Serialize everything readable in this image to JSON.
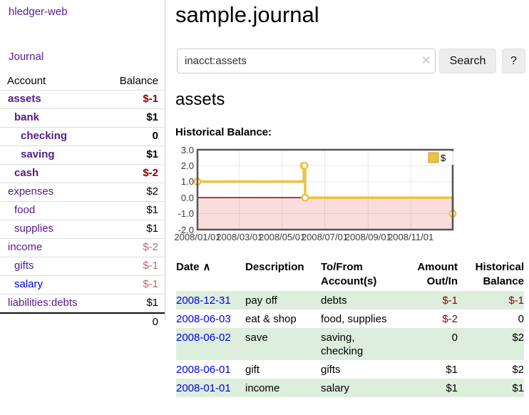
{
  "app": {
    "title": "hledger-web"
  },
  "colors": {
    "link_purple": "#551a8b",
    "link_blue": "#0000e6",
    "negative_strong": "#8b0000",
    "negative_soft": "#c06a6a",
    "row_stripe_green": "#ddeedd",
    "button_bg": "#ededed"
  },
  "sidebar": {
    "journal_link": "Journal",
    "accounts": {
      "headers": [
        "Account",
        "Balance"
      ],
      "rows": [
        {
          "account": "assets",
          "balance": "$-1",
          "depth": 1,
          "bold": true,
          "link_color": "purple"
        },
        {
          "account": "bank",
          "balance": "$1",
          "depth": 2,
          "bold": true,
          "link_color": "purple"
        },
        {
          "account": "checking",
          "balance": "0",
          "depth": 3,
          "bold": true,
          "link_color": "purple"
        },
        {
          "account": "saving",
          "balance": "$1",
          "depth": 3,
          "bold": true,
          "link_color": "purple"
        },
        {
          "account": "cash",
          "balance": "$-2",
          "depth": 2,
          "bold": true,
          "link_color": "purple"
        },
        {
          "account": "expenses",
          "balance": "$2",
          "depth": 1,
          "bold": false,
          "link_color": "purple"
        },
        {
          "account": "food",
          "balance": "$1",
          "depth": 2,
          "bold": false,
          "link_color": "purple"
        },
        {
          "account": "supplies",
          "balance": "$1",
          "depth": 2,
          "bold": false,
          "link_color": "purple"
        },
        {
          "account": "income",
          "balance": "$-2",
          "depth": 1,
          "bold": false,
          "link_color": "purple"
        },
        {
          "account": "gifts",
          "balance": "$-1",
          "depth": 2,
          "bold": false,
          "link_color": "purple"
        },
        {
          "account": "salary",
          "balance": "$-1",
          "depth": 2,
          "bold": false,
          "link_color": "blue"
        },
        {
          "account": "liabilities:debts",
          "balance": "$1",
          "depth": 1,
          "bold": false,
          "link_color": "purple"
        }
      ],
      "total": "0"
    }
  },
  "main": {
    "title": "sample.journal",
    "search": {
      "value": "inacct:assets",
      "clear_icon": "✕",
      "button_label": "Search",
      "help_label": "?"
    },
    "account_heading": "assets",
    "chart_title": "Historical Balance:",
    "register": {
      "headers": {
        "date": "Date",
        "description": "Description",
        "accounts": "To/From Account(s)",
        "amount": "Amount Out/In",
        "balance": "Historical Balance"
      },
      "sort_icon": "∧",
      "rows": [
        {
          "date": "2008-12-31",
          "description": "pay off",
          "accounts": "debts",
          "amount": "$-1",
          "balance": "$-1"
        },
        {
          "date": "2008-06-03",
          "description": "eat & shop",
          "accounts": "food, supplies",
          "amount": "$-2",
          "balance": "0"
        },
        {
          "date": "2008-06-02",
          "description": "save",
          "accounts": "saving, checking",
          "amount": "0",
          "balance": "$2"
        },
        {
          "date": "2008-06-01",
          "description": "gift",
          "accounts": "gifts",
          "amount": "$1",
          "balance": "$2"
        },
        {
          "date": "2008-01-01",
          "description": "income",
          "accounts": "salary",
          "amount": "$1",
          "balance": "$1"
        }
      ]
    }
  },
  "chart_data": {
    "type": "line",
    "style": "step",
    "title": "Historical Balance:",
    "x_range": [
      "2008-01-01",
      "2008-12-31"
    ],
    "ylim": [
      -2,
      3
    ],
    "grid": true,
    "legend_position": "top-right",
    "y_ticks": [
      {
        "value": 3,
        "label": "3.0"
      },
      {
        "value": 2,
        "label": "2.0"
      },
      {
        "value": 1,
        "label": "1.0"
      },
      {
        "value": 0,
        "label": "0.0"
      },
      {
        "value": -1,
        "label": "-1.0"
      },
      {
        "value": -2,
        "label": "-2.0"
      }
    ],
    "x_ticks": [
      {
        "date": "2008-01-01",
        "label": "2008/01/01"
      },
      {
        "date": "2008-03-01",
        "label": "2008/03/01"
      },
      {
        "date": "2008-05-01",
        "label": "2008/05/01"
      },
      {
        "date": "2008-07-01",
        "label": "2008/07/01"
      },
      {
        "date": "2008-09-01",
        "label": "2008/09/01"
      },
      {
        "date": "2008-11-01",
        "label": "2008/11/01"
      }
    ],
    "series": [
      {
        "name": "$",
        "color": "#edc240",
        "points": [
          {
            "date": "2008-01-01",
            "value": 1
          },
          {
            "date": "2008-06-01",
            "value": 2
          },
          {
            "date": "2008-06-02",
            "value": 2
          },
          {
            "date": "2008-06-03",
            "value": 0
          },
          {
            "date": "2008-12-31",
            "value": -1
          }
        ]
      }
    ],
    "colors": {
      "negative_fill": "#f9dddd",
      "zero_line": "#8b1a1a",
      "border": "#545454",
      "grid": "rgba(0,0,0,0.09)",
      "point_fill": "#ffffff",
      "legend_swatch_border": "#c9a22a"
    }
  }
}
